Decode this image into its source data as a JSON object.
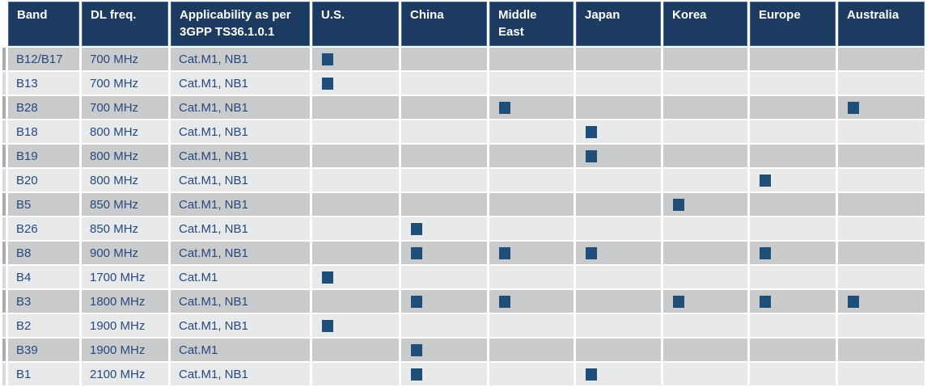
{
  "colors": {
    "header_bg": "#1d3a60",
    "header_border": "#3e6a99",
    "header_text": "#ffffff",
    "row_dark": "#cacbcd",
    "row_light": "#e8e9eb",
    "edge_dark": "#a8acb5",
    "edge_light": "#d8dade",
    "body_text": "#27497c",
    "marker": "#1f4e79"
  },
  "table": {
    "marker_glyph": "filled-square",
    "columns": [
      {
        "key": "band",
        "label": "Band",
        "type": "text"
      },
      {
        "key": "freq",
        "label": "DL freq.",
        "type": "text"
      },
      {
        "key": "applicability",
        "label": "Applicability as per 3GPP TS36.1.0.1",
        "type": "text"
      },
      {
        "key": "us",
        "label": "U.S.",
        "type": "region"
      },
      {
        "key": "china",
        "label": "China",
        "type": "region"
      },
      {
        "key": "middle_east",
        "label": "Middle East",
        "type": "region"
      },
      {
        "key": "japan",
        "label": "Japan",
        "type": "region"
      },
      {
        "key": "korea",
        "label": "Korea",
        "type": "region"
      },
      {
        "key": "europe",
        "label": "Europe",
        "type": "region"
      },
      {
        "key": "australia",
        "label": "Australia",
        "type": "region"
      }
    ],
    "rows": [
      {
        "band": "B12/B17",
        "freq": "700 MHz",
        "applicability": "Cat.M1, NB1",
        "regions": [
          "us"
        ]
      },
      {
        "band": "B13",
        "freq": "700 MHz",
        "applicability": "Cat.M1, NB1",
        "regions": [
          "us"
        ]
      },
      {
        "band": "B28",
        "freq": "700 MHz",
        "applicability": "Cat.M1, NB1",
        "regions": [
          "middle_east",
          "australia"
        ]
      },
      {
        "band": "B18",
        "freq": "800 MHz",
        "applicability": "Cat.M1, NB1",
        "regions": [
          "japan"
        ]
      },
      {
        "band": "B19",
        "freq": "800 MHz",
        "applicability": "Cat.M1, NB1",
        "regions": [
          "japan"
        ]
      },
      {
        "band": "B20",
        "freq": "800 MHz",
        "applicability": "Cat.M1, NB1",
        "regions": [
          "europe"
        ]
      },
      {
        "band": "B5",
        "freq": "850 MHz",
        "applicability": "Cat.M1, NB1",
        "regions": [
          "korea"
        ]
      },
      {
        "band": "B26",
        "freq": "850 MHz",
        "applicability": "Cat.M1, NB1",
        "regions": [
          "china"
        ]
      },
      {
        "band": "B8",
        "freq": "900 MHz",
        "applicability": "Cat.M1, NB1",
        "regions": [
          "china",
          "middle_east",
          "japan",
          "europe"
        ]
      },
      {
        "band": "B4",
        "freq": "1700 MHz",
        "applicability": "Cat.M1",
        "regions": [
          "us"
        ]
      },
      {
        "band": "B3",
        "freq": "1800 MHz",
        "applicability": "Cat.M1, NB1",
        "regions": [
          "china",
          "middle_east",
          "korea",
          "europe",
          "australia"
        ]
      },
      {
        "band": "B2",
        "freq": "1900 MHz",
        "applicability": "Cat.M1, NB1",
        "regions": [
          "us"
        ]
      },
      {
        "band": "B39",
        "freq": "1900 MHz",
        "applicability": "Cat.M1",
        "regions": [
          "china"
        ]
      },
      {
        "band": "B1",
        "freq": "2100 MHz",
        "applicability": "Cat.M1, NB1",
        "regions": [
          "china",
          "japan"
        ]
      }
    ]
  }
}
